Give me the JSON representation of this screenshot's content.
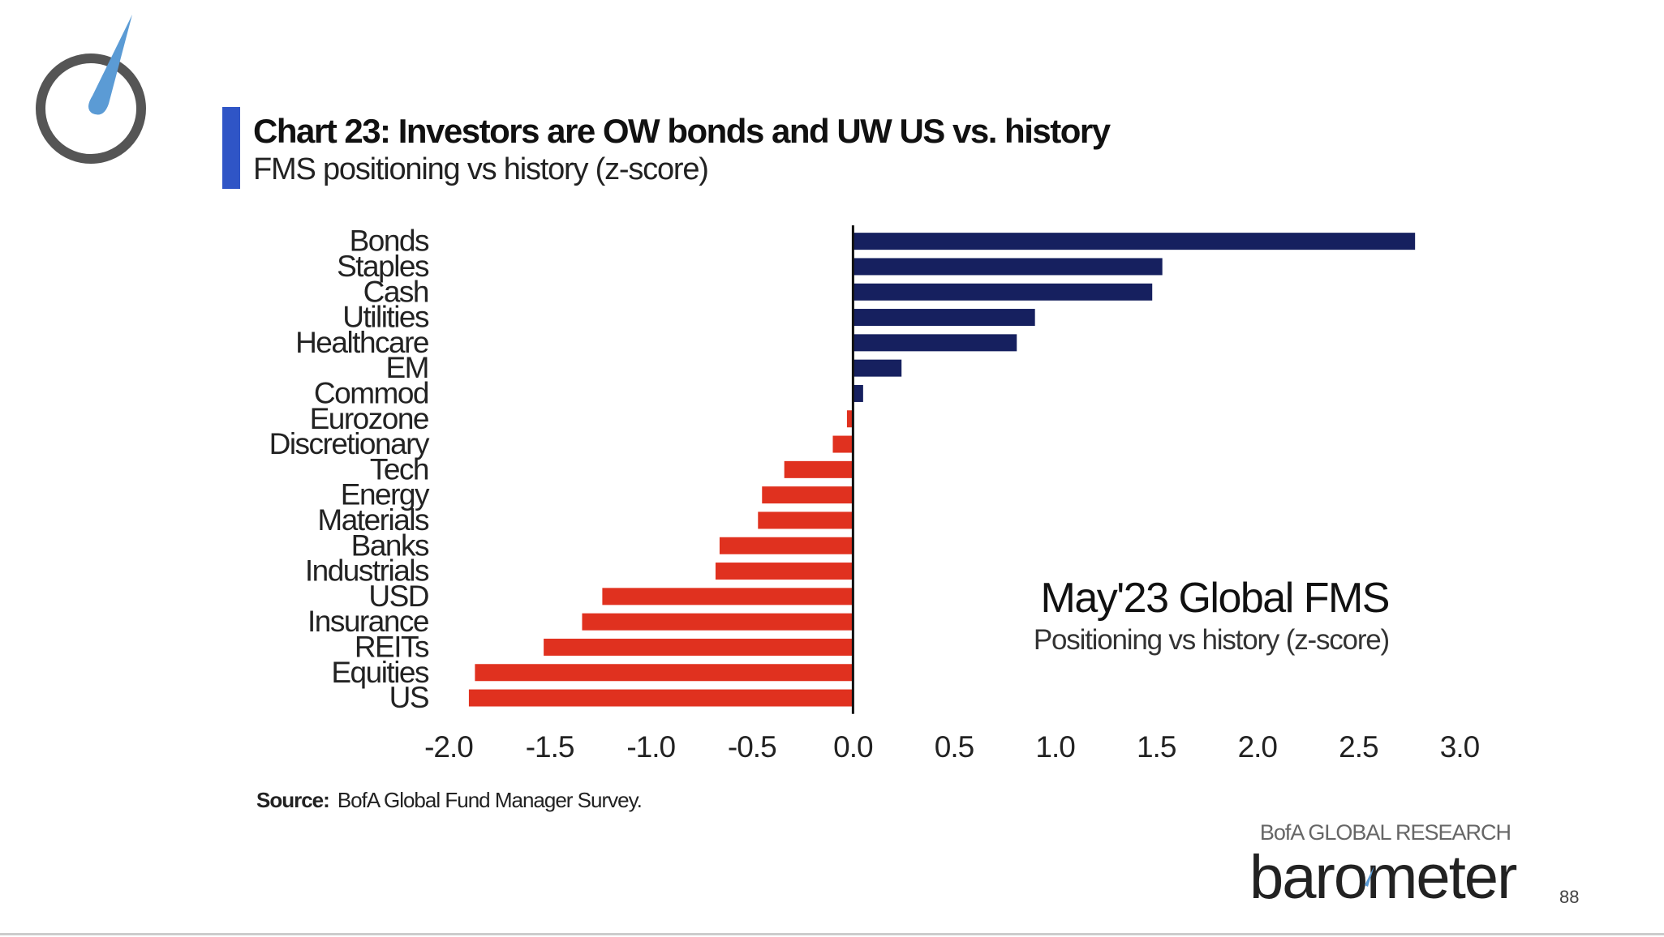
{
  "title": "Chart 23: Investors are OW bonds and UW US vs. history",
  "subtitle": "FMS positioning vs history (z-score)",
  "annotation": {
    "title": "May'23 Global FMS",
    "subtitle": "Positioning vs history (z-score)"
  },
  "source": {
    "label": "Source:",
    "text": "BofA Global Fund Manager Survey."
  },
  "research_label": "BofA GLOBAL RESEARCH",
  "brand": "barometer",
  "page_number": "88",
  "colors": {
    "positive": "#16205f",
    "negative": "#e0311f",
    "accent": "#2f55c6",
    "gauge_needle": "#5b9bd5",
    "gauge_ring": "#555555"
  },
  "chart_data": {
    "type": "bar",
    "orientation": "horizontal",
    "title": "Chart 23: Investors are OW bonds and UW US vs. history",
    "subtitle": "FMS positioning vs history (z-score)",
    "xlabel": "",
    "ylabel": "",
    "xlim": [
      -2.0,
      3.0
    ],
    "xticks": [
      -2.0,
      -1.5,
      -1.0,
      -0.5,
      0.0,
      0.5,
      1.0,
      1.5,
      2.0,
      2.5,
      3.0
    ],
    "xtick_labels": [
      "-2.0",
      "-1.5",
      "-1.0",
      "-0.5",
      "0.0",
      "0.5",
      "1.0",
      "1.5",
      "2.0",
      "2.5",
      "3.0"
    ],
    "grid": false,
    "categories": [
      "Bonds",
      "Staples",
      "Cash",
      "Utilities",
      "Healthcare",
      "EM",
      "Commod",
      "Eurozone",
      "Discretionary",
      "Tech",
      "Energy",
      "Materials",
      "Banks",
      "Industrials",
      "USD",
      "Insurance",
      "REITs",
      "Equities",
      "US"
    ],
    "values": [
      2.78,
      1.53,
      1.48,
      0.9,
      0.81,
      0.24,
      0.05,
      -0.03,
      -0.1,
      -0.34,
      -0.45,
      -0.47,
      -0.66,
      -0.68,
      -1.24,
      -1.34,
      -1.53,
      -1.87,
      -1.9
    ]
  }
}
